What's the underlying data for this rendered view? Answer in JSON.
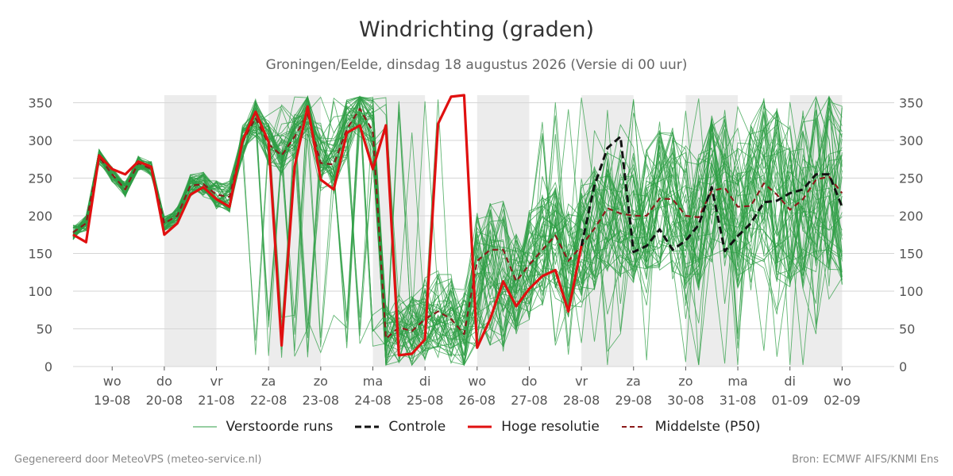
{
  "header": {
    "title": "Windrichting (graden)",
    "subtitle": "Groningen/Eelde, dinsdag 18 augustus 2026 (Versie di 00 uur)"
  },
  "footer": {
    "left": "Gegenereerd door MeteoVPS (meteo-service.nl)",
    "right": "Bron: ECMWF AIFS/KNMI Ens"
  },
  "legend": [
    {
      "label": "Verstoorde runs",
      "color": "#2e9e44",
      "style": "thin"
    },
    {
      "label": "Controle",
      "color": "#111111",
      "style": "dashed-bold"
    },
    {
      "label": "Hoge resolutie",
      "color": "#e01010",
      "style": "solid-bold"
    },
    {
      "label": "Middelste (P50)",
      "color": "#8b1a1a",
      "style": "dashed"
    }
  ],
  "chart_data": {
    "type": "line",
    "title": "Windrichting (graden)",
    "ylim": [
      0,
      360
    ],
    "yticks": [
      0,
      50,
      100,
      150,
      200,
      250,
      300,
      350
    ],
    "xlim_days": [
      -0.75,
      15
    ],
    "xticks": [
      {
        "day": "wo",
        "date": "19-08"
      },
      {
        "day": "do",
        "date": "20-08"
      },
      {
        "day": "vr",
        "date": "21-08"
      },
      {
        "day": "za",
        "date": "22-08"
      },
      {
        "day": "zo",
        "date": "23-08"
      },
      {
        "day": "ma",
        "date": "24-08"
      },
      {
        "day": "di",
        "date": "25-08"
      },
      {
        "day": "wo",
        "date": "26-08"
      },
      {
        "day": "do",
        "date": "27-08"
      },
      {
        "day": "vr",
        "date": "28-08"
      },
      {
        "day": "za",
        "date": "29-08"
      },
      {
        "day": "zo",
        "date": "30-08"
      },
      {
        "day": "ma",
        "date": "31-08"
      },
      {
        "day": "di",
        "date": "01-09"
      },
      {
        "day": "wo",
        "date": "02-09"
      }
    ],
    "shaded_days": [
      1,
      3,
      5,
      7,
      9,
      11,
      13
    ],
    "grid": true,
    "series": [
      {
        "name": "Hoge resolutie",
        "color": "#e01010",
        "values": [
          175,
          165,
          280,
          262,
          255,
          272,
          265,
          175,
          190,
          228,
          238,
          222,
          212,
          300,
          338,
          298,
          28,
          265,
          345,
          248,
          235,
          310,
          320,
          262,
          320,
          15,
          17,
          36,
          322,
          358,
          360,
          25,
          63,
          113,
          80,
          103,
          120,
          128,
          73,
          160
        ]
      },
      {
        "name": "Middelste (P50)",
        "color": "#8b1a1a",
        "values": [
          178,
          190,
          278,
          255,
          235,
          270,
          262,
          190,
          200,
          240,
          242,
          228,
          225,
          298,
          330,
          295,
          280,
          305,
          335,
          270,
          268,
          315,
          342,
          312,
          37,
          52,
          47,
          63,
          73,
          63,
          43,
          140,
          155,
          155,
          113,
          135,
          155,
          174,
          140,
          160,
          183,
          210,
          203,
          200,
          200,
          223,
          222,
          200,
          198,
          233,
          237,
          212,
          213,
          243,
          228,
          208,
          222,
          248,
          252,
          230
        ]
      },
      {
        "name": "Controle",
        "color": "#111111",
        "values": [
          null,
          null,
          null,
          null,
          null,
          null,
          null,
          null,
          null,
          null,
          null,
          null,
          null,
          null,
          null,
          null,
          null,
          null,
          null,
          null,
          null,
          null,
          null,
          null,
          null,
          null,
          null,
          null,
          null,
          null,
          null,
          null,
          null,
          null,
          null,
          null,
          null,
          null,
          null,
          160,
          240,
          290,
          305,
          152,
          160,
          182,
          155,
          167,
          188,
          238,
          153,
          173,
          190,
          218,
          220,
          230,
          235,
          255,
          255,
          212
        ]
      }
    ]
  }
}
